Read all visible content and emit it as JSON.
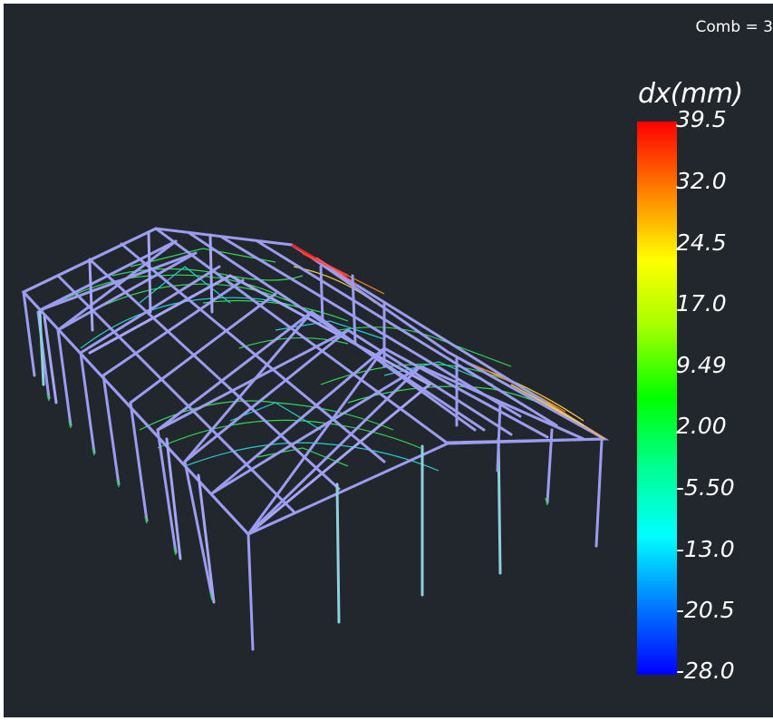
{
  "viewer": {
    "comb_label": "Comb = 3"
  },
  "legend": {
    "title": "dx(mm)",
    "ticks": [
      "39.5",
      "32.0",
      "24.5",
      "17.0",
      "9.49",
      "2.00",
      "-5.50",
      "-13.0",
      "-20.5",
      "-28.0"
    ]
  },
  "colors": {
    "background": "#22272d",
    "member_default": "#9c9cf0",
    "member_secondary": "#8fd0e0",
    "bracing_green": "#33e05a",
    "bracing_cyan": "#27d8d8",
    "hot_red": "#ff2020",
    "hot_yellow": "#ffd040",
    "support_green": "#22cc44"
  }
}
